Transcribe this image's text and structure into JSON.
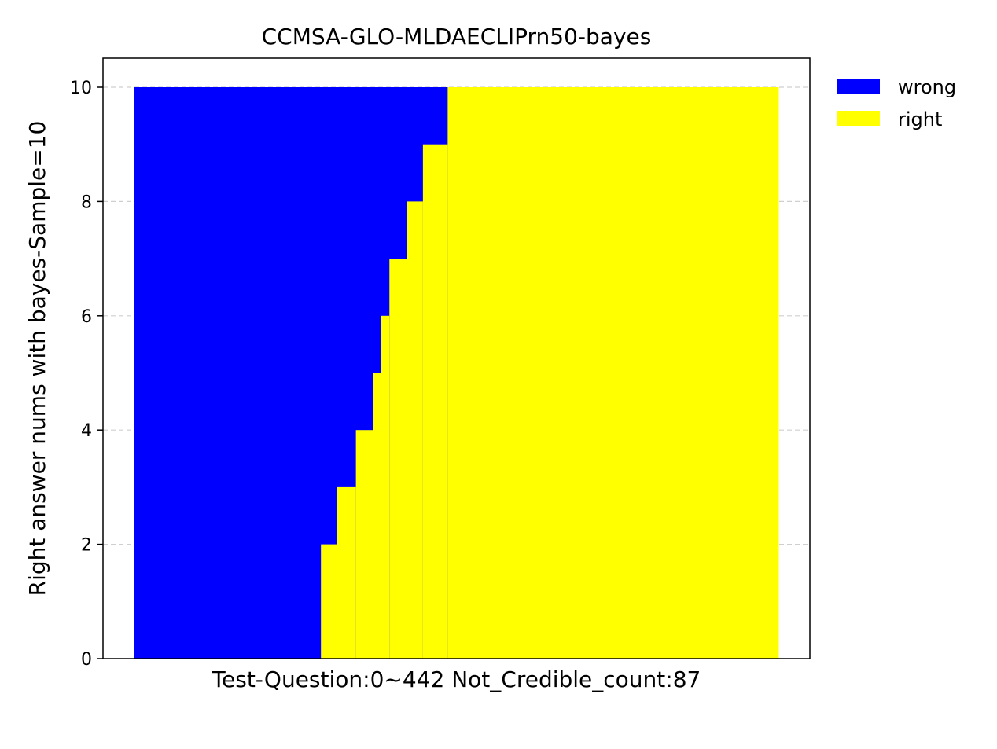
{
  "chart_data": {
    "type": "area",
    "title": "CCMSA-GLO-MLDAECLIPrn50-bayes",
    "xlabel": "Test-Question:0~442 Not_Credible_count:87",
    "ylabel": "Right answer nums with bayes-Sample=10",
    "xlim": [
      0,
      442
    ],
    "ylim": [
      0,
      10
    ],
    "yticks": [
      0,
      2,
      4,
      6,
      8,
      10
    ],
    "grid": "y-dashed",
    "legend_position": "upper-right-outside",
    "colors": {
      "wrong": "#0000ff",
      "right": "#ffff00"
    },
    "series": [
      {
        "name": "wrong",
        "color": "#0000ff"
      },
      {
        "name": "right",
        "color": "#ffff00"
      }
    ],
    "right_counts_steps": [
      {
        "x_start": 0,
        "x_end": 128,
        "right": 0
      },
      {
        "x_start": 128,
        "x_end": 139,
        "right": 2
      },
      {
        "x_start": 139,
        "x_end": 152,
        "right": 3
      },
      {
        "x_start": 152,
        "x_end": 164,
        "right": 4
      },
      {
        "x_start": 164,
        "x_end": 169,
        "right": 5
      },
      {
        "x_start": 169,
        "x_end": 175,
        "right": 6
      },
      {
        "x_start": 175,
        "x_end": 187,
        "right": 7
      },
      {
        "x_start": 187,
        "x_end": 198,
        "right": 8
      },
      {
        "x_start": 198,
        "x_end": 215,
        "right": 9
      },
      {
        "x_start": 215,
        "x_end": 442,
        "right": 10
      }
    ]
  }
}
